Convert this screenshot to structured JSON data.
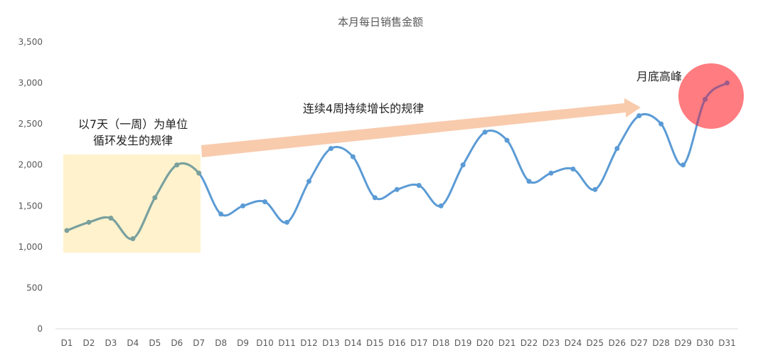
{
  "chart_data": {
    "type": "line",
    "title": "本月每日销售金额",
    "xlabel": "",
    "ylabel": "",
    "ylim": [
      0,
      3500
    ],
    "yticks": [
      "0",
      "500",
      "1,000",
      "1,500",
      "2,000",
      "2,500",
      "3,000",
      "3,500"
    ],
    "ytick_values": [
      0,
      500,
      1000,
      1500,
      2000,
      2500,
      3000,
      3500
    ],
    "grid": false,
    "categories": [
      "D1",
      "D2",
      "D3",
      "D4",
      "D5",
      "D6",
      "D7",
      "D8",
      "D9",
      "D10",
      "D11",
      "D12",
      "D13",
      "D14",
      "D15",
      "D16",
      "D17",
      "D18",
      "D19",
      "D20",
      "D21",
      "D22",
      "D23",
      "D24",
      "D25",
      "D26",
      "D27",
      "D28",
      "D29",
      "D30",
      "D31"
    ],
    "series": [
      {
        "values": [
          1200,
          1300,
          1350,
          1100,
          1600,
          2000,
          1900,
          1400,
          1500,
          1550,
          1300,
          1800,
          2200,
          2100,
          1600,
          1700,
          1750,
          1500,
          2000,
          2400,
          2300,
          1800,
          1900,
          1950,
          1700,
          2200,
          2600,
          2500,
          2000,
          2800,
          3000
        ],
        "color": "#5b9bd5"
      }
    ],
    "annotations": [
      {
        "text_lines": [
          "以7天（一周）为单位",
          "循环发生的规律"
        ],
        "highlight": "box",
        "range": [
          "D1",
          "D7"
        ],
        "color": "#fff2cc"
      },
      {
        "text_lines": [
          "连续4周持续增长的规律"
        ],
        "highlight": "arrow",
        "range": [
          "D7",
          "D27"
        ],
        "color": "#f8cbad"
      },
      {
        "text_lines": [
          "月底高峰"
        ],
        "highlight": "circle",
        "range": [
          "D30",
          "D31"
        ],
        "color": "#ff7c80"
      }
    ],
    "colors": {
      "axis_line": "#d9d9d9",
      "text": "#595959",
      "box_line": "#7aa09c",
      "circle_line": "#a05a88"
    }
  }
}
